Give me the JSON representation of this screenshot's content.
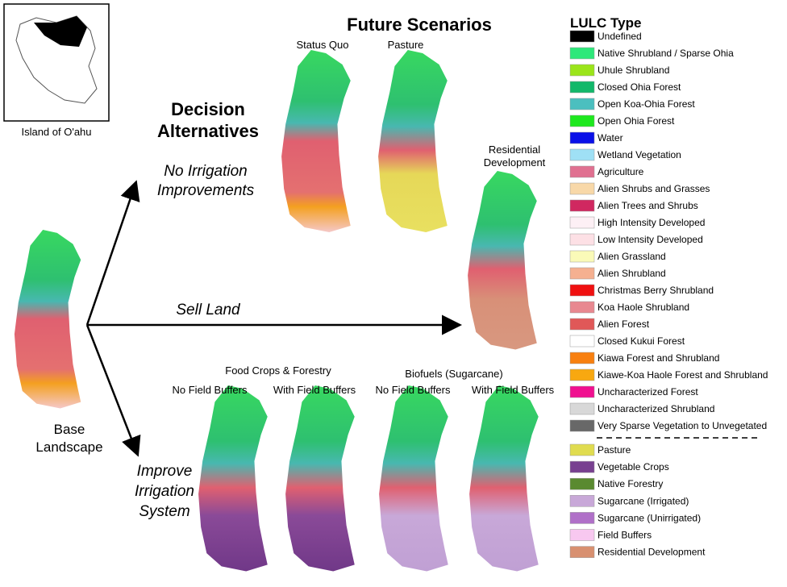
{
  "inset": {
    "caption": "Island of O'ahu"
  },
  "decision_title": [
    "Decision",
    "Alternatives"
  ],
  "future_title": "Future Scenarios",
  "base_label": [
    "Base",
    "Landscape"
  ],
  "arrows": {
    "top": [
      "No Irrigation",
      "Improvements"
    ],
    "middle": "Sell Land",
    "bottom": [
      "Improve",
      "Irrigation",
      "System"
    ]
  },
  "maps": {
    "status_quo": "Status Quo",
    "pasture": "Pasture",
    "residential": [
      "Residential",
      "Development"
    ],
    "food_group": "Food Crops & Forestry",
    "food_no_buffers": "No Field Buffers",
    "food_with_buffers": "With Field Buffers",
    "biofuel_group": "Biofuels (Sugarcane)",
    "biofuel_no_buffers": "No Field Buffers",
    "biofuel_with_buffers": "With Field Buffers"
  },
  "legend": {
    "title": "LULC Type",
    "items": [
      {
        "name": "Undefined",
        "color": "#000000"
      },
      {
        "name": "Native Shrubland / Sparse Ohia",
        "color": "#2ee87a"
      },
      {
        "name": "Uhule Shrubland",
        "color": "#9be51a"
      },
      {
        "name": "Closed Ohia Forest",
        "color": "#12b86a"
      },
      {
        "name": "Open Koa-Ohia Forest",
        "color": "#4bbfbf"
      },
      {
        "name": "Open Ohia Forest",
        "color": "#1ee81e"
      },
      {
        "name": "Water",
        "color": "#0a10e8"
      },
      {
        "name": "Wetland Vegetation",
        "color": "#9fe0f5"
      },
      {
        "name": "Agriculture",
        "color": "#e07090"
      },
      {
        "name": "Alien Shrubs and Grasses",
        "color": "#f8d8a8"
      },
      {
        "name": "Alien Trees and Shrubs",
        "color": "#d02860"
      },
      {
        "name": "High Intensity Developed",
        "color": "#fdf0f5"
      },
      {
        "name": "Low Intensity Developed",
        "color": "#fde0e5"
      },
      {
        "name": "Alien Grassland",
        "color": "#fafab8"
      },
      {
        "name": "Alien Shrubland",
        "color": "#f5b090"
      },
      {
        "name": "Christmas Berry Shrubland",
        "color": "#f01010"
      },
      {
        "name": "Koa Haole Shrubland",
        "color": "#e88890"
      },
      {
        "name": "Alien Forest",
        "color": "#e05858"
      },
      {
        "name": "Closed Kukui Forest",
        "color": "#ffffff"
      },
      {
        "name": "Kiawa Forest and Shrubland",
        "color": "#f88010"
      },
      {
        "name": "Kiawe-Koa Haole Forest and Shrubland",
        "color": "#f8a810"
      },
      {
        "name": "Uncharacterized Forest",
        "color": "#f01090"
      },
      {
        "name": "Uncharacterized Shrubland",
        "color": "#d8d8d8"
      },
      {
        "name": "Very Sparse Vegetation to Unvegetated",
        "color": "#686868"
      }
    ],
    "scenario_items": [
      {
        "name": "Pasture",
        "color": "#e0dc50"
      },
      {
        "name": "Vegetable Crops",
        "color": "#784090"
      },
      {
        "name": "Native Forestry",
        "color": "#5a8a30"
      },
      {
        "name": "Sugarcane (Irrigated)",
        "color": "#c8a8d8"
      },
      {
        "name": "Sugarcane (Unirrigated)",
        "color": "#b070c8"
      },
      {
        "name": "Field Buffers",
        "color": "#f8c8f0"
      },
      {
        "name": "Residential Development",
        "color": "#d89070"
      }
    ]
  }
}
